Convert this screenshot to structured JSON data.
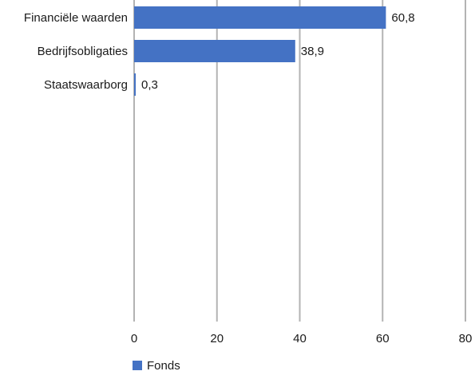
{
  "chart_data": {
    "type": "bar",
    "orientation": "horizontal",
    "categories": [
      "Financiële waarden",
      "Bedrijfsobligaties",
      "Staatswaarborg"
    ],
    "series": [
      {
        "name": "Fonds",
        "values": [
          60.8,
          38.9,
          0.3
        ],
        "value_labels": [
          "60,8",
          "38,9",
          "0,3"
        ]
      }
    ],
    "xlim": [
      0,
      80
    ],
    "xticks": [
      0,
      20,
      40,
      60,
      80
    ],
    "grid": true,
    "legend_position": "bottom-left",
    "colors": {
      "bar": "#4472c4",
      "grid": "#b3b3b3",
      "text": "#1a1a1a"
    }
  }
}
